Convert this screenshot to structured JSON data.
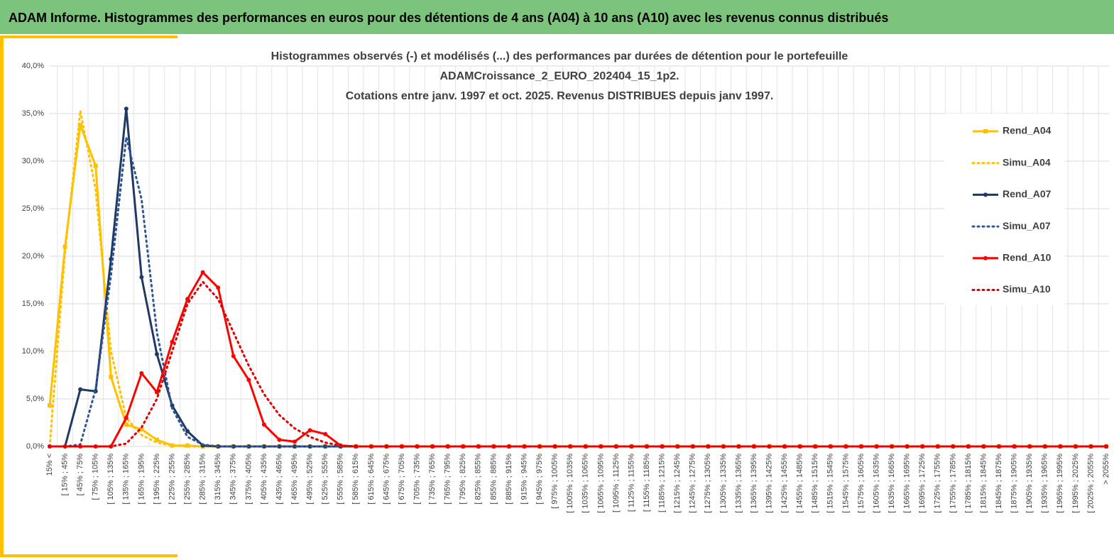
{
  "header": "ADAM Informe. Histogrammes des performances en euros pour des détentions de 4 ans (A04) à 10 ans (A10) avec les revenus connus distribués",
  "chart_data": {
    "type": "line",
    "title": [
      "Histogrammes observés (-) et modélisés (...) des performances  par durées de détention pour le portefeuille",
      "ADAMCroissance_2_EURO_202404_15_1p2.",
      "Cotations entre janv. 1997 et oct. 2025. Revenus DISTRIBUES depuis janv 1997."
    ],
    "categories": [
      "15% <",
      "[ 15% ; 45%",
      "[ 45% ; 75%",
      "[ 75% ; 105%",
      "[ 105% ; 135%",
      "[ 135% ; 165%",
      "[ 165% ; 195%",
      "[ 195% ; 225%",
      "[ 225% ; 255%",
      "[ 255% ; 285%",
      "[ 285% ; 315%",
      "[ 315% ; 345%",
      "[ 345% ; 375%",
      "[ 375% ; 405%",
      "[ 405% ; 435%",
      "[ 435% ; 465%",
      "[ 465% ; 495%",
      "[ 495% ; 525%",
      "[ 525% ; 555%",
      "[ 555% ; 585%",
      "[ 585% ; 615%",
      "[ 615% ; 645%",
      "[ 645% ; 675%",
      "[ 675% ; 705%",
      "[ 705% ; 735%",
      "[ 735% ; 765%",
      "[ 765% ; 795%",
      "[ 795% ; 825%",
      "[ 825% ; 855%",
      "[ 855% ; 885%",
      "[ 885% ; 915%",
      "[ 915% ; 945%",
      "[ 945% ; 975%",
      "[ 975% ; 1005%",
      "[ 1005% ; 1035%",
      "[ 1035% ; 1065%",
      "[ 1065% ; 1095%",
      "[ 1095% ; 1125%",
      "[ 1125% ; 1155%",
      "[ 1155% ; 1185%",
      "[ 1185% ; 1215%",
      "[ 1215% ; 1245%",
      "[ 1245% ; 1275%",
      "[ 1275% ; 1305%",
      "[ 1305% ; 1335%",
      "[ 1335% ; 1365%",
      "[ 1365% ; 1395%",
      "[ 1395% ; 1425%",
      "[ 1425% ; 1455%",
      "[ 1455% ; 1485%",
      "[ 1485% ; 1515%",
      "[ 1515% ; 1545%",
      "[ 1545% ; 1575%",
      "[ 1575% ; 1605%",
      "[ 1605% ; 1635%",
      "[ 1635% ; 1665%",
      "[ 1665% ; 1695%",
      "[ 1695% ; 1725%",
      "[ 1725% ; 1755%",
      "[ 1755% ; 1785%",
      "[ 1785% ; 1815%",
      "[ 1815% ; 1845%",
      "[ 1845% ; 1875%",
      "[ 1875% ; 1905%",
      "[ 1905% ; 1935%",
      "[ 1935% ; 1965%",
      "[ 1965% ; 1995%",
      "[ 1995% ; 2025%",
      "[ 2025% ; 2055%",
      "> 2055%"
    ],
    "series": [
      {
        "name": "Rend_A04",
        "color": "#ffc000",
        "style": "solid",
        "marker": "square",
        "values": [
          4.3,
          21,
          33.8,
          29.5,
          7.3,
          2.3,
          1.8,
          0.7,
          0.1,
          0.1,
          0,
          0,
          0,
          0,
          0,
          0,
          0,
          0,
          0,
          0,
          0,
          0,
          0,
          0,
          0,
          0,
          0,
          0,
          0,
          0,
          0,
          0,
          0,
          0,
          0,
          0,
          0,
          0,
          0,
          0,
          0,
          0,
          0,
          0,
          0,
          0,
          0,
          0,
          0,
          0,
          0,
          0,
          0,
          0,
          0,
          0,
          0,
          0,
          0,
          0,
          0,
          0,
          0,
          0,
          0,
          0,
          0,
          0,
          0,
          0
        ]
      },
      {
        "name": "Simu_A04",
        "color": "#ffc000",
        "style": "dotted",
        "marker": "none",
        "values": [
          0,
          20.5,
          35.3,
          27,
          10,
          3,
          1.2,
          0.4,
          0.1,
          0,
          0,
          0,
          0,
          0,
          0,
          0,
          0,
          0,
          0,
          0,
          0,
          0,
          0,
          0,
          0,
          0,
          0,
          0,
          0,
          0,
          0,
          0,
          0,
          0,
          0,
          0,
          0,
          0,
          0,
          0,
          0,
          0,
          0,
          0,
          0,
          0,
          0,
          0,
          0,
          0,
          0,
          0,
          0,
          0,
          0,
          0,
          0,
          0,
          0,
          0,
          0,
          0,
          0,
          0,
          0,
          0,
          0,
          0,
          0,
          0
        ]
      },
      {
        "name": "Rend_A07",
        "color": "#1f3864",
        "style": "solid",
        "marker": "circle",
        "values": [
          0,
          0,
          6,
          5.8,
          19.7,
          35.5,
          17.8,
          9.7,
          4.3,
          1.6,
          0.1,
          0,
          0,
          0,
          0,
          0,
          0,
          0,
          0,
          0,
          0,
          0,
          0,
          0,
          0,
          0,
          0,
          0,
          0,
          0,
          0,
          0,
          0,
          0,
          0,
          0,
          0,
          0,
          0,
          0,
          0,
          0,
          0,
          0,
          0,
          0,
          0,
          0,
          0,
          0,
          0,
          0,
          0,
          0,
          0,
          0,
          0,
          0,
          0,
          0,
          0,
          0,
          0,
          0,
          0,
          0,
          0,
          0,
          0,
          0
        ]
      },
      {
        "name": "Simu_A07",
        "color": "#2f5597",
        "style": "dotted",
        "marker": "none",
        "values": [
          0,
          0,
          0.2,
          6,
          18,
          32.5,
          26,
          12,
          4,
          1,
          0.2,
          0,
          0,
          0,
          0,
          0,
          0,
          0,
          0,
          0,
          0,
          0,
          0,
          0,
          0,
          0,
          0,
          0,
          0,
          0,
          0,
          0,
          0,
          0,
          0,
          0,
          0,
          0,
          0,
          0,
          0,
          0,
          0,
          0,
          0,
          0,
          0,
          0,
          0,
          0,
          0,
          0,
          0,
          0,
          0,
          0,
          0,
          0,
          0,
          0,
          0,
          0,
          0,
          0,
          0,
          0,
          0,
          0,
          0,
          0
        ]
      },
      {
        "name": "Rend_A10",
        "color": "#ff0000",
        "style": "solid",
        "marker": "circle",
        "values": [
          0,
          0,
          0,
          0,
          0,
          3,
          7.7,
          5.7,
          11,
          15.5,
          18.3,
          16.7,
          9.5,
          7,
          2.3,
          0.7,
          0.5,
          1.7,
          1.3,
          0.1,
          0,
          0,
          0,
          0,
          0,
          0,
          0,
          0,
          0,
          0,
          0,
          0,
          0,
          0,
          0,
          0,
          0,
          0,
          0,
          0,
          0,
          0,
          0,
          0,
          0,
          0,
          0,
          0,
          0,
          0,
          0,
          0,
          0,
          0,
          0,
          0,
          0,
          0,
          0,
          0,
          0,
          0,
          0,
          0,
          0,
          0,
          0,
          0,
          0,
          0
        ]
      },
      {
        "name": "Simu_A10",
        "color": "#e00000",
        "style": "dotted",
        "marker": "none",
        "values": [
          0,
          0,
          0,
          0,
          0,
          0.3,
          2,
          5,
          10,
          15,
          17.3,
          15.5,
          12,
          8.5,
          5.5,
          3.3,
          1.9,
          1,
          0.4,
          0.1,
          0,
          0,
          0,
          0,
          0,
          0,
          0,
          0,
          0,
          0,
          0,
          0,
          0,
          0,
          0,
          0,
          0,
          0,
          0,
          0,
          0,
          0,
          0,
          0,
          0,
          0,
          0,
          0,
          0,
          0,
          0,
          0,
          0,
          0,
          0,
          0,
          0,
          0,
          0,
          0,
          0,
          0,
          0,
          0,
          0,
          0,
          0,
          0,
          0,
          0
        ]
      }
    ],
    "ylim": [
      0,
      40
    ],
    "yticks": [
      {
        "value": 0,
        "label": "0,0%"
      },
      {
        "value": 5,
        "label": "5,0%"
      },
      {
        "value": 10,
        "label": "10,0%"
      },
      {
        "value": 15,
        "label": "15,0%"
      },
      {
        "value": 20,
        "label": "20,0%"
      },
      {
        "value": 25,
        "label": "25,0%"
      },
      {
        "value": 30,
        "label": "30,0%"
      },
      {
        "value": 35,
        "label": "35,0%"
      },
      {
        "value": 40,
        "label": "40,0%"
      }
    ],
    "grid": true,
    "legend": "upper right"
  }
}
